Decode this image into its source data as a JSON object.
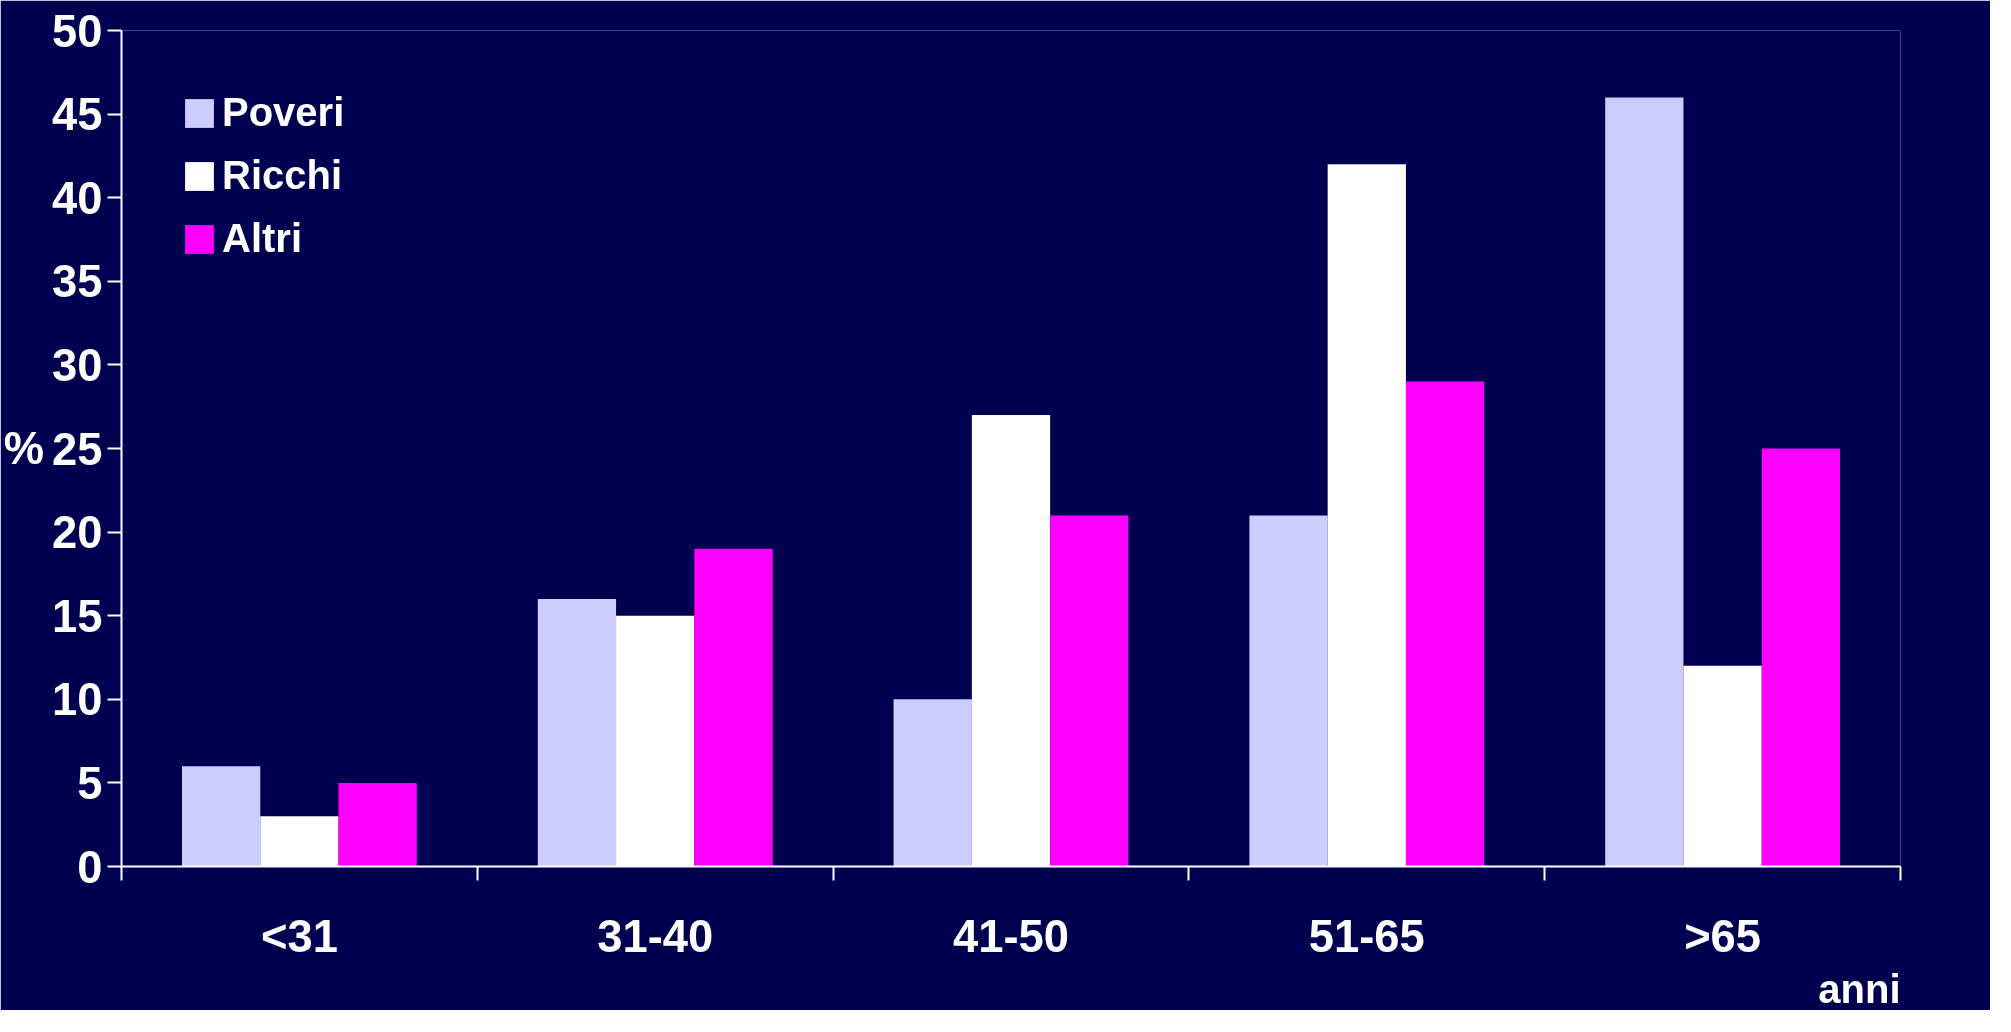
{
  "chart_data": {
    "type": "bar",
    "categories": [
      "<31",
      "31-40",
      "41-50",
      "51-65",
      ">65"
    ],
    "series": [
      {
        "name": "Poveri",
        "color": "#ccccff",
        "values": [
          6,
          16,
          10,
          21,
          46
        ]
      },
      {
        "name": "Ricchi",
        "color": "#ffffff",
        "values": [
          3,
          15,
          27,
          42,
          12
        ]
      },
      {
        "name": "Altri",
        "color": "#ff00ff",
        "values": [
          5,
          19,
          21,
          29,
          25
        ]
      }
    ],
    "xlabel": "anni",
    "ylabel": "%",
    "ylim": [
      0,
      50
    ],
    "yticks": [
      0,
      5,
      10,
      15,
      20,
      25,
      30,
      35,
      40,
      45,
      50
    ],
    "grid": false,
    "legend": "top left"
  }
}
